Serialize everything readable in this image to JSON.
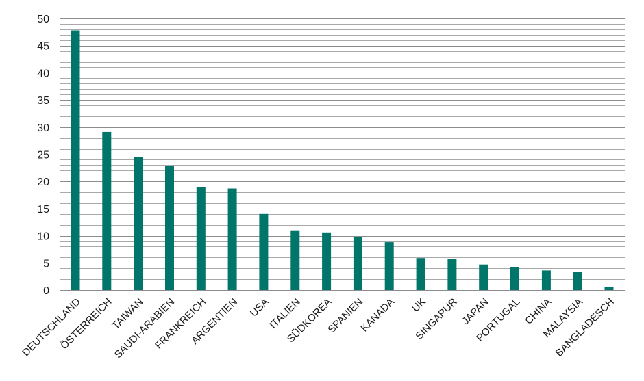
{
  "chart_data": {
    "type": "bar",
    "title": "",
    "xlabel": "",
    "ylabel": "",
    "ylim": [
      0,
      50
    ],
    "yticks": [
      "0",
      "5",
      "10",
      "15",
      "20",
      "25",
      "30",
      "35",
      "40",
      "45",
      "50"
    ],
    "minor_grid_step": 1,
    "grid": true,
    "legend": "none",
    "bar_color": "#00756a",
    "grid_color": "#8c8c8c",
    "categories": [
      "DEUTSCHLAND",
      "ÖSTERREICH",
      "TAIWAN",
      "SAUDI-ARABIEN",
      "FRANKREICH",
      "ARGENTIEN",
      "USA",
      "ITALIEN",
      "SÜDKOREA",
      "SPANIEN",
      "KANADA",
      "UK",
      "SINGAPUR",
      "JAPAN",
      "PORTUGAL",
      "CHINA",
      "MALAYSIA",
      "BANGLADESCH"
    ],
    "values": [
      47.8,
      29.1,
      24.5,
      22.8,
      19.0,
      18.7,
      14.0,
      11.0,
      10.6,
      9.8,
      8.8,
      5.9,
      5.7,
      4.7,
      4.2,
      3.6,
      3.4,
      0.5
    ]
  }
}
